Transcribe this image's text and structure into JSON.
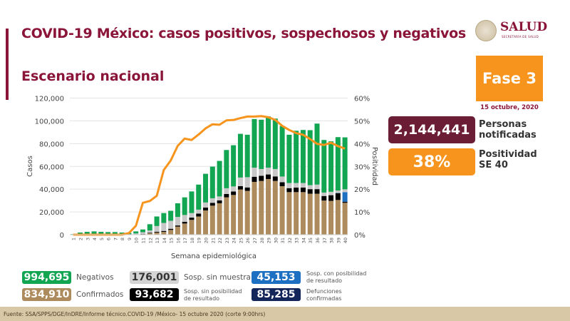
{
  "header": {
    "title": "COVID-19 México: casos positivos, sospechosos y negativos",
    "subtitle": "Escenario nacional"
  },
  "logo": {
    "name": "SALUD",
    "sub": "SECRETARÍA DE SALUD"
  },
  "phase": {
    "label": "Fase 3",
    "date": "15 octubre, 2020",
    "color": "#f7941d"
  },
  "kpis": [
    {
      "value": "2,144,441",
      "label_line1": "Personas",
      "label_line2": "notificadas",
      "color": "#6b1d35"
    },
    {
      "value": "38%",
      "label_line1": "Positividad",
      "label_line2": "SE 40",
      "color": "#f7941d"
    }
  ],
  "legend": [
    {
      "value": "994,695",
      "label": "Negativos",
      "color": "#12a552"
    },
    {
      "value": "834,910",
      "label": "Confirmados",
      "color": "#ad8b5d"
    },
    {
      "value": "176,001",
      "label": "Sosp. sin muestra",
      "color": "#c8c8c8"
    },
    {
      "value": "93,682",
      "label1": "Sosp. sin posibilidad",
      "label2": "de resultado",
      "color": "#000000"
    },
    {
      "value": "45,153",
      "label1": "Sosp. con posibilidad",
      "label2": "de resultado",
      "color": "#1d6fc1"
    },
    {
      "value": "85,285",
      "label1": "Defunciones",
      "label2": "confirmadas",
      "color": "#14255a"
    }
  ],
  "footer": "Fuente: SSA/SPPS/DGE/InDRE/Informe técnico.COVID-19 /México- 15 octubre 2020 (corte 9:00hrs)",
  "chart_data": {
    "type": "bar",
    "stacked": true,
    "xlabel": "Semana epidemiológica",
    "ylabel": "Casos",
    "y2label": "Positividad",
    "ylim": [
      0,
      120000
    ],
    "y2lim": [
      0,
      60
    ],
    "yticks": [
      "0",
      "20,000",
      "40,000",
      "60,000",
      "80,000",
      "100,000",
      "120,000"
    ],
    "y2ticks": [
      "0%",
      "10%",
      "20%",
      "30%",
      "40%",
      "50%",
      "60%"
    ],
    "grid": true,
    "categories": [
      "1",
      "2",
      "3",
      "4",
      "5",
      "6",
      "7",
      "8",
      "9",
      "10",
      "11",
      "12",
      "13",
      "14",
      "15",
      "16",
      "17",
      "18",
      "19",
      "20",
      "21",
      "22",
      "23",
      "24",
      "25",
      "26",
      "27",
      "28",
      "29",
      "30",
      "31",
      "32",
      "33",
      "34",
      "35",
      "36",
      "37",
      "38",
      "39",
      "40"
    ],
    "series": [
      {
        "name": "Confirmados",
        "color": "#ad8b5d",
        "values": [
          0,
          0,
          0,
          0,
          0,
          0,
          0,
          0,
          100,
          300,
          500,
          1200,
          1900,
          2500,
          4200,
          7100,
          9800,
          13000,
          16000,
          21300,
          25500,
          27600,
          32800,
          34900,
          39700,
          38500,
          46400,
          47200,
          48900,
          47200,
          42600,
          37400,
          37400,
          37400,
          36000,
          36000,
          30000,
          29700,
          30500,
          28000
        ]
      },
      {
        "name": "Sosp. sin posibilidad de resultado",
        "color": "#000000",
        "values": [
          0,
          0,
          0,
          0,
          0,
          0,
          0,
          0,
          0,
          0,
          200,
          500,
          700,
          800,
          1000,
          1000,
          1500,
          2000,
          2500,
          2500,
          2500,
          2500,
          3000,
          3000,
          3000,
          3000,
          4500,
          4500,
          4000,
          4000,
          3500,
          3500,
          4000,
          4000,
          4000,
          4000,
          4000,
          5000,
          6000,
          1000
        ]
      },
      {
        "name": "Sosp. con posibilidad de resultado",
        "color": "#1d6fc1",
        "values": [
          0,
          0,
          0,
          0,
          0,
          0,
          0,
          0,
          0,
          0,
          0,
          0,
          0,
          0,
          0,
          0,
          0,
          0,
          0,
          0,
          0,
          0,
          0,
          0,
          0,
          0,
          0,
          0,
          0,
          0,
          0,
          0,
          0,
          0,
          0,
          0,
          0,
          0,
          300,
          8400
        ]
      },
      {
        "name": "Sosp. sin muestra",
        "color": "#c8c8c8",
        "values": [
          0,
          200,
          300,
          300,
          300,
          300,
          300,
          300,
          300,
          800,
          1500,
          2000,
          5000,
          7000,
          7000,
          7500,
          6000,
          4000,
          3500,
          4500,
          4000,
          3500,
          5000,
          4500,
          7500,
          9000,
          8000,
          6000,
          6000,
          6500,
          5000,
          4500,
          4000,
          4000,
          3500,
          4000,
          3000,
          3000,
          2000,
          2500
        ]
      },
      {
        "name": "Negativos",
        "color": "#12a552",
        "values": [
          500,
          1700,
          2200,
          2600,
          2200,
          2000,
          2000,
          1600,
          1100,
          1800,
          2400,
          5500,
          8400,
          8700,
          8800,
          12000,
          15500,
          19000,
          22000,
          25200,
          27800,
          31200,
          33600,
          36200,
          38400,
          37300,
          42700,
          43300,
          45000,
          44300,
          44400,
          42400,
          45900,
          46600,
          48300,
          53600,
          46200,
          44300,
          46900,
          45600
        ]
      },
      {
        "name": "Positividad",
        "type": "line",
        "axis": "y2",
        "color": "#f7941d",
        "values": [
          0,
          0,
          0,
          0,
          0,
          0,
          0,
          0,
          0.7,
          3.9,
          14,
          14.8,
          17.1,
          28.4,
          32.6,
          39,
          42.2,
          41.6,
          44,
          46.7,
          48.5,
          48.3,
          50.2,
          50.4,
          51.2,
          51.9,
          51.9,
          52.1,
          51.6,
          50.4,
          47.8,
          46,
          44.6,
          43.9,
          42,
          39.9,
          39.4,
          40.4,
          38.9,
          37.8
        ]
      }
    ]
  }
}
